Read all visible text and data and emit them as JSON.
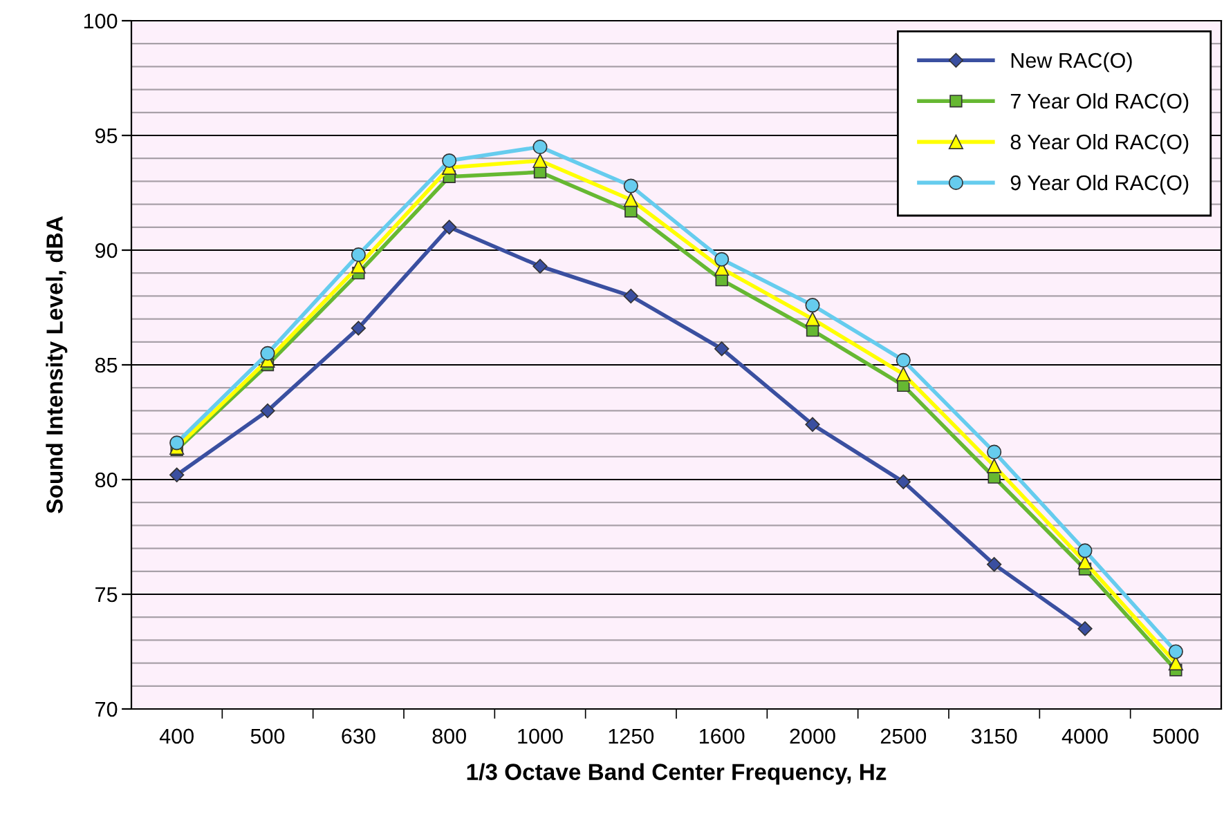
{
  "chart_data": {
    "type": "line",
    "xlabel": "1/3 Octave Band Center Frequency, Hz",
    "ylabel": "Sound Intensity Level, dBA",
    "categories": [
      "400",
      "500",
      "630",
      "800",
      "1000",
      "1250",
      "1600",
      "2000",
      "2500",
      "3150",
      "4000",
      "5000"
    ],
    "series": [
      {
        "name": "New RAC(O)",
        "color": "#3a4fa0",
        "marker": "diamond",
        "values": [
          80.2,
          83.0,
          86.6,
          91.0,
          89.3,
          88.0,
          85.7,
          82.4,
          79.9,
          76.3,
          73.5,
          null
        ]
      },
      {
        "name": "7 Year Old RAC(O)",
        "color": "#66b832",
        "marker": "square",
        "values": [
          81.3,
          85.0,
          89.0,
          93.2,
          93.4,
          91.7,
          88.7,
          86.5,
          84.1,
          80.1,
          76.1,
          71.7
        ]
      },
      {
        "name": "8 Year Old RAC(O)",
        "color": "#ffff00",
        "marker": "triangle",
        "values": [
          81.4,
          85.2,
          89.3,
          93.6,
          93.9,
          92.2,
          89.2,
          87.0,
          84.6,
          80.6,
          76.4,
          72.0
        ]
      },
      {
        "name": "9 Year Old RAC(O)",
        "color": "#66ccee",
        "marker": "circle",
        "values": [
          81.6,
          85.5,
          89.8,
          93.9,
          94.5,
          92.8,
          89.6,
          87.6,
          85.2,
          81.2,
          76.9,
          72.5
        ]
      }
    ],
    "ylim": [
      70,
      100
    ],
    "yticks": [
      70,
      {
        "value": 71,
        "label": null
      },
      {
        "value": 72,
        "label": null
      },
      {
        "value": 73,
        "label": null
      },
      {
        "value": 74,
        "label": null
      },
      75,
      {
        "value": 76,
        "label": null
      },
      {
        "value": 77,
        "label": null
      },
      {
        "value": 78,
        "label": null
      },
      {
        "value": 79,
        "label": null
      },
      80,
      {
        "value": 81,
        "label": null
      },
      {
        "value": 82,
        "label": null
      },
      {
        "value": 83,
        "label": null
      },
      {
        "value": 84,
        "label": null
      },
      85,
      {
        "value": 86,
        "label": null
      },
      {
        "value": 87,
        "label": null
      },
      {
        "value": 88,
        "label": null
      },
      {
        "value": 89,
        "label": null
      },
      90,
      {
        "value": 91,
        "label": null
      },
      {
        "value": 92,
        "label": null
      },
      {
        "value": 93,
        "label": null
      },
      {
        "value": 94,
        "label": null
      },
      95,
      {
        "value": 96,
        "label": null
      },
      {
        "value": 97,
        "label": null
      },
      {
        "value": 98,
        "label": null
      },
      {
        "value": 99,
        "label": null
      },
      100
    ],
    "grid": "y",
    "legend": "top right",
    "line_style": "solid"
  }
}
